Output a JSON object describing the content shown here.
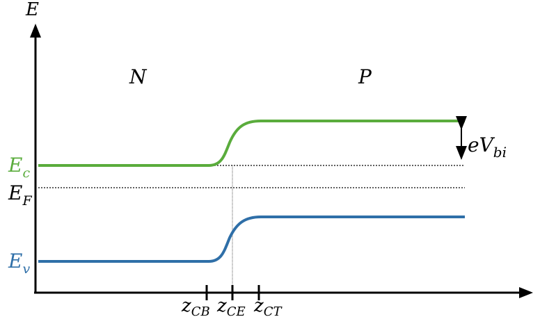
{
  "axes": {
    "y_label": "E"
  },
  "regions": {
    "left": "N",
    "right": "P"
  },
  "levels": {
    "ec": {
      "base": "E",
      "sub": "c",
      "color": "#5aac3c"
    },
    "ef": {
      "base": "E",
      "sub": "F",
      "color": "#000000"
    },
    "ev": {
      "base": "E",
      "sub": "v",
      "color": "#2f6fa8"
    }
  },
  "built_in": {
    "base": "eV",
    "sub": "bi"
  },
  "x_ticks": [
    {
      "base": "z",
      "sub": "CB"
    },
    {
      "base": "z",
      "sub": "CE"
    },
    {
      "base": "z",
      "sub": "CT"
    }
  ]
}
